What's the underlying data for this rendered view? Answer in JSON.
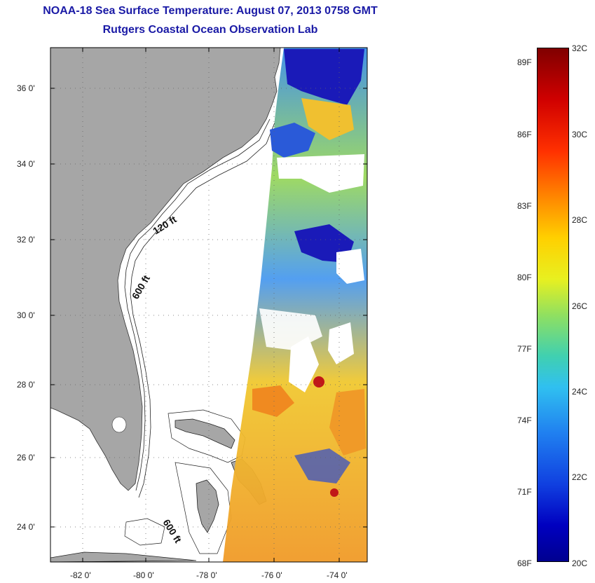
{
  "title": "NOAA-18 Sea Surface Temperature:  August 07, 2013 0758 GMT",
  "subtitle": "Rutgers Coastal Ocean Observation Lab",
  "map": {
    "lat_labels": [
      "36 0'",
      "34 0'",
      "32 0'",
      "30 0'",
      "28 0'",
      "26 0'",
      "24 0'"
    ],
    "lon_labels": [
      "-82 0'",
      "-80 0'",
      "-78 0'",
      "-76 0'",
      "-74 0'"
    ],
    "lat_range": [
      23,
      37.1
    ],
    "lon_range": [
      -83,
      -73
    ],
    "isobath_labels": [
      "120 ft",
      "600 ft",
      "600 ft"
    ],
    "colors": {
      "land": "#a6a6a6",
      "sea": "#ffffff",
      "title": "#1a1aa6"
    }
  },
  "colorbar": {
    "fahrenheit_labels": [
      "89F",
      "86F",
      "83F",
      "80F",
      "77F",
      "74F",
      "71F",
      "68F"
    ],
    "celsius_labels": [
      "32C",
      "30C",
      "28C",
      "26C",
      "24C",
      "22C",
      "20C"
    ],
    "range_c": [
      20,
      32
    ],
    "colormap": "jet"
  }
}
